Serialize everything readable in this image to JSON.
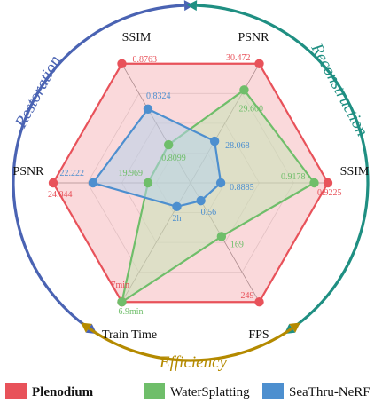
{
  "chart_data": {
    "type": "radar",
    "axes": [
      "SSIM",
      "PSNR",
      "SSIM",
      "FPS",
      "Train Time",
      "PSNR"
    ],
    "groups": [
      {
        "label": "Restoration",
        "color": "#4a63b3"
      },
      {
        "label": "Reconstruction",
        "color": "#1f8f82"
      },
      {
        "label": "Efficiency",
        "color": "#b48a00"
      }
    ],
    "series": [
      {
        "name": "Plenodium",
        "color": "#e8525a",
        "fill": "#f6b9bd",
        "radii": [
          1.0,
          1.0,
          1.0,
          1.0,
          1.0,
          1.0
        ],
        "labels": [
          "0.8763",
          "30.472",
          "0.9225",
          "249",
          "7min",
          "24.844"
        ]
      },
      {
        "name": "WaterSplatting",
        "color": "#6fbe6a",
        "fill": "#c6e3b6",
        "radii": [
          0.32,
          0.78,
          0.9,
          0.45,
          1.0,
          0.31
        ],
        "labels": [
          "0.8099",
          "29.600",
          "0.9178",
          "169",
          "6.9min",
          "19.969"
        ]
      },
      {
        "name": "SeaThru-NeRF",
        "color": "#4d8fcf",
        "fill": "#b6d1ea",
        "radii": [
          0.62,
          0.35,
          0.22,
          0.15,
          0.2,
          0.71
        ],
        "labels": [
          "0.8324",
          "28.068",
          "0.8885",
          "0.56",
          "2h",
          "22.222"
        ]
      }
    ]
  }
}
